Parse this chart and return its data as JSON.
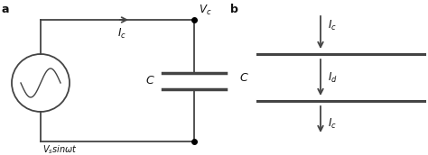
{
  "bg_color": "#ffffff",
  "line_color": "#444444",
  "text_color": "#111111",
  "fig_width": 4.74,
  "fig_height": 1.72,
  "dpi": 100,
  "label_a": "a",
  "label_b": "b"
}
